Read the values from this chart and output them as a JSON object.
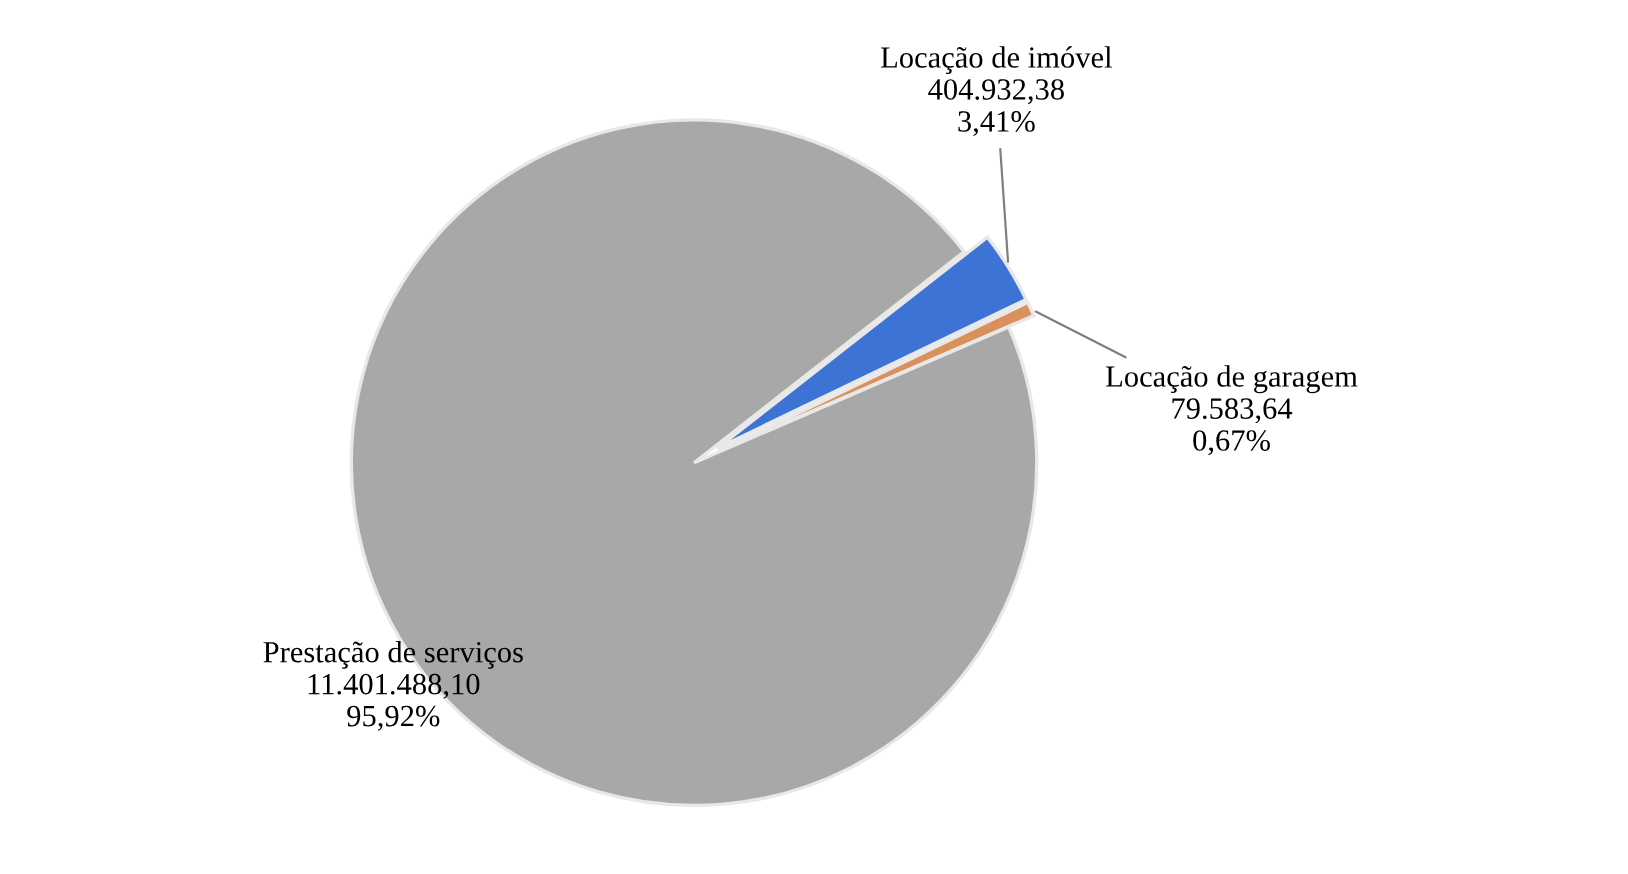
{
  "chart_data": {
    "type": "pie",
    "categories": [
      "Locação de imóvel",
      "Locação de garagem",
      "Prestação de serviços"
    ],
    "values": [
      404932.38,
      79583.64,
      11401488.1
    ],
    "value_labels": [
      "404.932,38\n3,41%",
      "79.583,64\n0,67%",
      "11.401.488,10\n95,92%"
    ],
    "colors": [
      "#3e73d6",
      "#d9905a",
      "#a8a8a8"
    ]
  }
}
